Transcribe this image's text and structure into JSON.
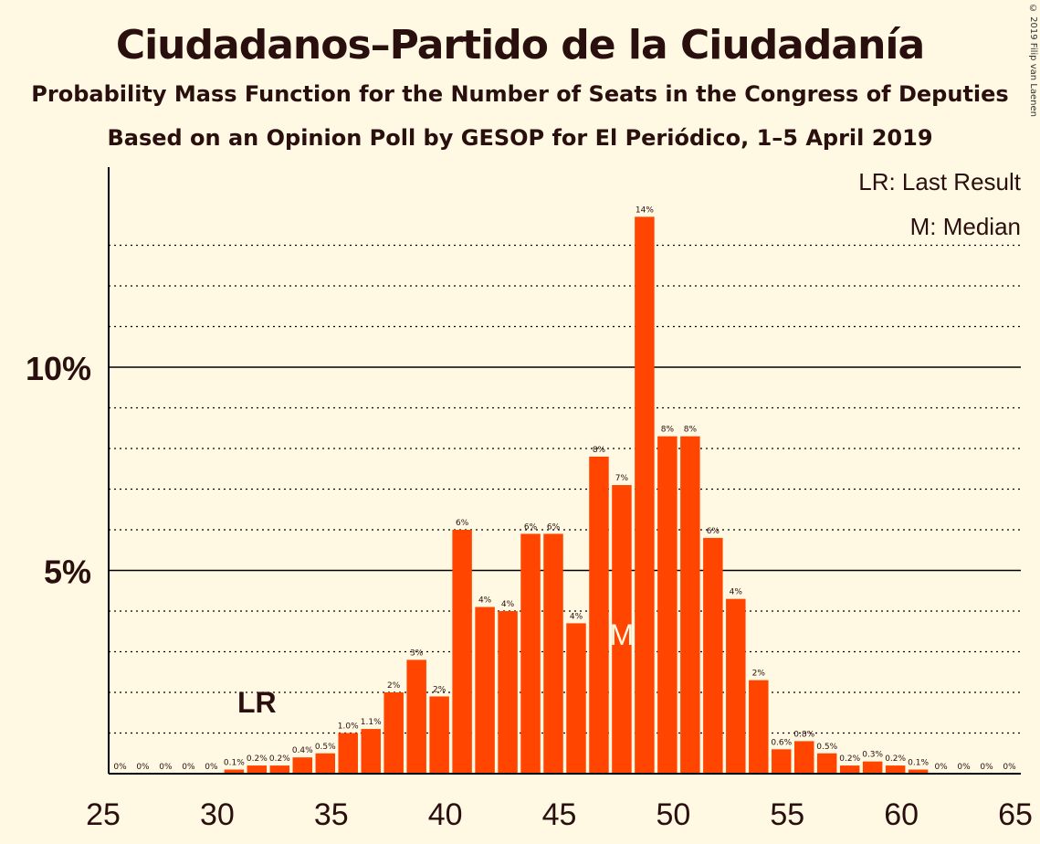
{
  "header": {
    "title": "Ciudadanos–Partido de la Ciudadanía",
    "subtitle": "Probability Mass Function for the Number of Seats in the Congress of Deputies",
    "subtitle2": "Based on an Opinion Poll by GESOP for El Periódico, 1–5 April 2019",
    "copyright": "© 2019 Filip van Laenen"
  },
  "legend": {
    "lr": "LR: Last Result",
    "median": "M: Median"
  },
  "markers": {
    "lr_label": "LR",
    "lr_seat": 32,
    "median_label": "M",
    "median_seat": 48
  },
  "colors": {
    "bar": "#ff4500",
    "background": "#fff8e2",
    "text": "#2a0f0f"
  },
  "chart_data": {
    "type": "bar",
    "x": [
      26,
      27,
      28,
      29,
      30,
      31,
      32,
      33,
      34,
      35,
      36,
      37,
      38,
      39,
      40,
      41,
      42,
      43,
      44,
      45,
      46,
      47,
      48,
      49,
      50,
      51,
      52,
      53,
      54,
      55,
      56,
      57,
      58,
      59,
      60,
      61,
      62,
      63,
      64,
      65
    ],
    "values": [
      0,
      0,
      0,
      0,
      0,
      0.1,
      0.2,
      0.2,
      0.4,
      0.5,
      1.0,
      1.1,
      2.0,
      2.8,
      1.9,
      6.0,
      4.1,
      4.0,
      5.9,
      5.9,
      3.7,
      7.8,
      7.1,
      13.7,
      8.3,
      8.3,
      5.8,
      4.3,
      2.3,
      0.6,
      0.8,
      0.5,
      0.2,
      0.3,
      0.2,
      0.1,
      0,
      0,
      0,
      0
    ],
    "labels": [
      "0%",
      "0%",
      "0%",
      "0%",
      "0%",
      "0.1%",
      "0.2%",
      "0.2%",
      "0.4%",
      "0.5%",
      "1.0%",
      "1.1%",
      "2%",
      "3%",
      "2%",
      "6%",
      "4%",
      "4%",
      "6%",
      "6%",
      "4%",
      "8%",
      "7%",
      "14%",
      "8%",
      "8%",
      "6%",
      "4%",
      "2%",
      "0.6%",
      "0.8%",
      "0.5%",
      "0.2%",
      "0.3%",
      "0.2%",
      "0.1%",
      "0%",
      "0%",
      "0%",
      "0%"
    ],
    "x_ticks": [
      25,
      30,
      35,
      40,
      45,
      50,
      55,
      60,
      65
    ],
    "x_tick_labels": [
      "25",
      "30",
      "35",
      "40",
      "45",
      "50",
      "55",
      "60",
      "65"
    ],
    "y_ticks": [
      5,
      10
    ],
    "y_tick_labels": [
      "5%",
      "10%"
    ],
    "ylim": [
      0,
      14.6
    ],
    "xlim": [
      25,
      65
    ],
    "grid": "dotted every 1%, solid at 5% and 10%"
  }
}
